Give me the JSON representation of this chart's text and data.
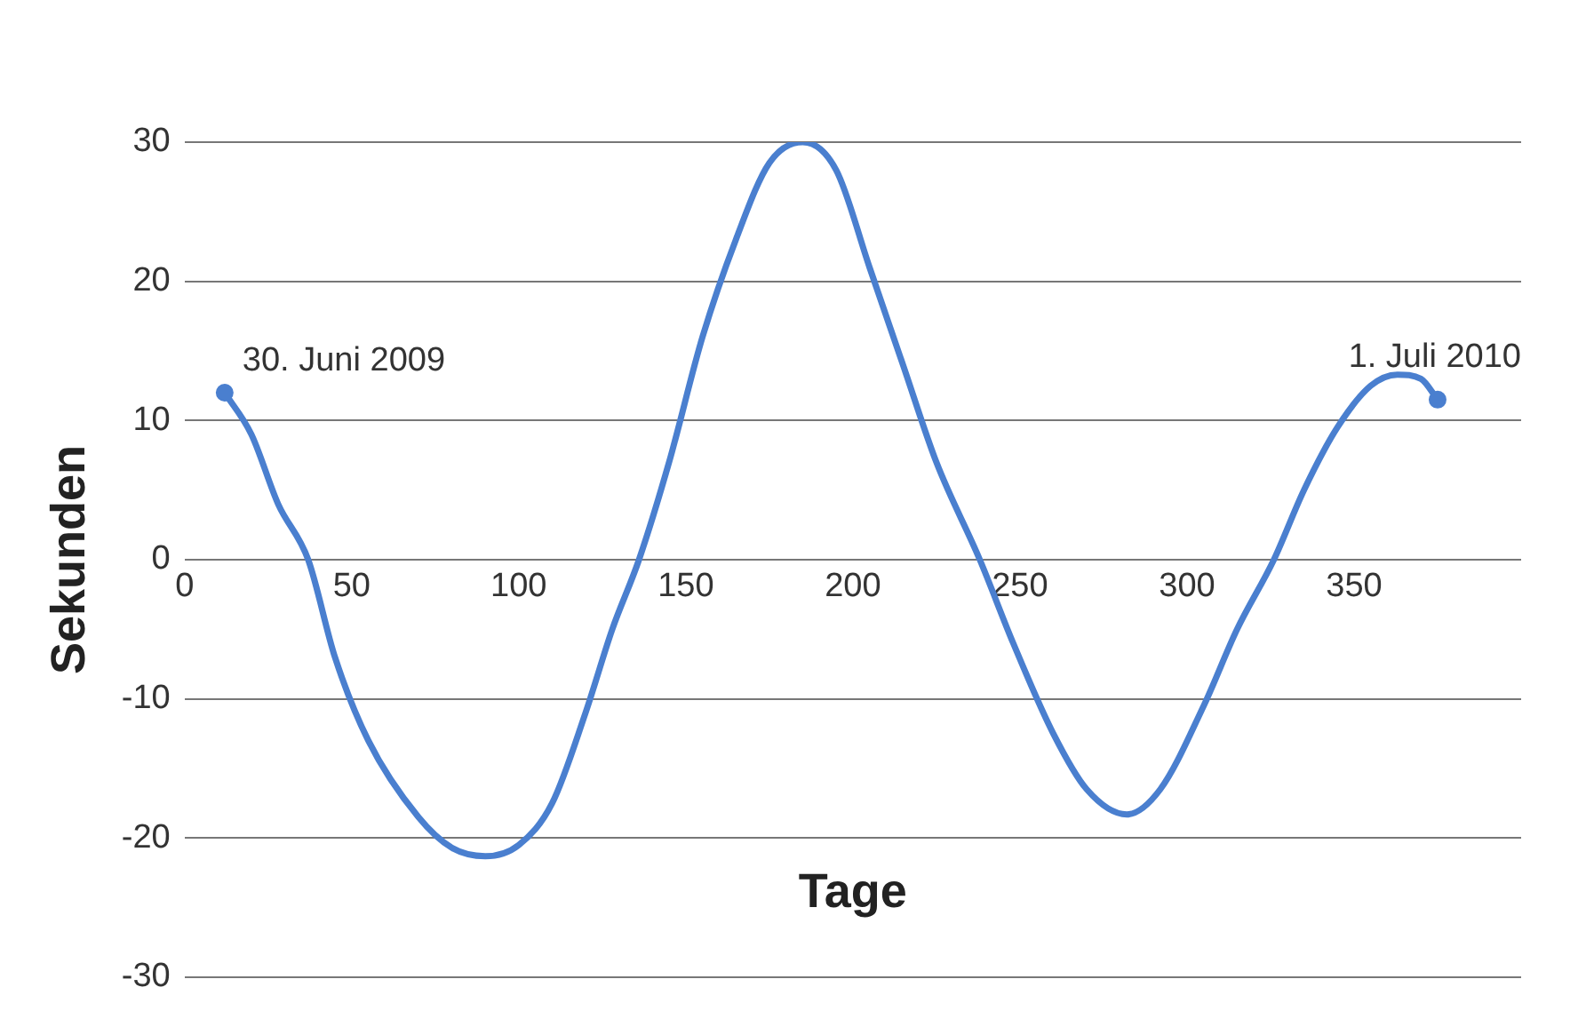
{
  "chart_data": {
    "type": "line",
    "xlabel": "Tage",
    "ylabel": "Sekunden",
    "x": [
      12,
      20,
      28,
      37,
      45,
      55,
      70,
      80,
      90,
      100,
      110,
      120,
      128,
      136,
      145,
      155,
      165,
      175,
      185,
      195,
      205,
      215,
      225,
      238,
      248,
      260,
      270,
      282,
      292,
      305,
      315,
      326,
      335,
      345,
      355,
      363,
      370,
      375
    ],
    "series": [
      {
        "color": "#4a7fcf",
        "values": [
          12,
          9,
          4,
          0,
          -7,
          -13,
          -18.5,
          -20.7,
          -21.3,
          -20.5,
          -17.5,
          -11,
          -5,
          0,
          7,
          16,
          23,
          28.5,
          30,
          28,
          21,
          14,
          7,
          0,
          -6,
          -12.5,
          -16.5,
          -18.3,
          -16.5,
          -10.5,
          -5,
          0,
          5,
          9.5,
          12.5,
          13.3,
          13,
          11.5
        ]
      }
    ],
    "xlim": [
      0,
      400
    ],
    "xticks": [
      0,
      50,
      100,
      150,
      200,
      250,
      300,
      350
    ],
    "ylim": [
      -30,
      30
    ],
    "yticks": [
      -30,
      -20,
      -10,
      0,
      10,
      20,
      30
    ],
    "grid": "y",
    "legend": false,
    "marker": "none",
    "line_style": "solid",
    "annotations": [
      {
        "text": "30. Juni 2009",
        "x": 12,
        "y": 12
      },
      {
        "text": "1. Juli 2010",
        "x": 375,
        "y": 11.5
      }
    ]
  }
}
